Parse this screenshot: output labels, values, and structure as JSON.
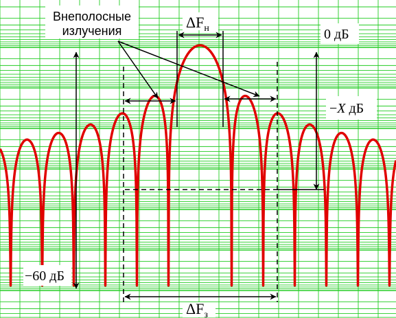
{
  "labels": {
    "out_of_band_line1": "Внеполосные",
    "out_of_band_line2": "излучения",
    "delta_f_n": "ΔF",
    "delta_f_n_sub": "н",
    "delta_f_z": "ΔF",
    "delta_f_z_sub": "з",
    "zero_db": "0 дБ",
    "minus_x_prefix": "−",
    "minus_x_var": "X",
    "minus_x_suffix": " дБ",
    "minus_60_db": "−60 дБ"
  },
  "colors": {
    "grid": "#22cc22",
    "spectrum": "#e00000",
    "annotation": "#000000",
    "background": "#ffffff"
  },
  "spectrum": {
    "type": "sinc-squared envelope",
    "floor_db": -60,
    "top_db": 0
  }
}
